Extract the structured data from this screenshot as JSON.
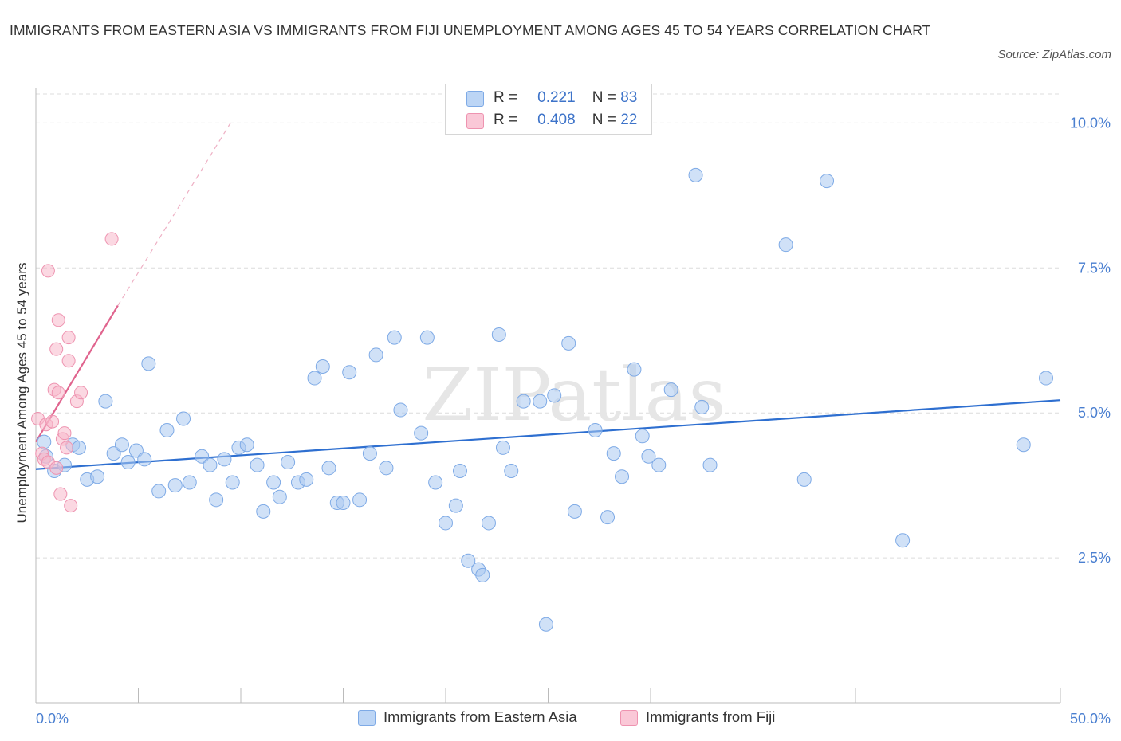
{
  "title": "IMMIGRANTS FROM EASTERN ASIA VS IMMIGRANTS FROM FIJI UNEMPLOYMENT AMONG AGES 45 TO 54 YEARS CORRELATION CHART",
  "source": "Source: ZipAtlas.com",
  "watermark": "ZIPatlas",
  "legend": {
    "rows": [
      {
        "r_label": "R =",
        "r_value": "0.221",
        "n_label": "N =",
        "n_value": "83",
        "color": "#a9c8f1"
      },
      {
        "r_label": "R =",
        "r_value": "0.408",
        "n_label": "N =",
        "n_value": "22",
        "color": "#f7b8cb"
      }
    ]
  },
  "chart_data": {
    "type": "scatter",
    "title": "IMMIGRANTS FROM EASTERN ASIA VS IMMIGRANTS FROM FIJI UNEMPLOYMENT AMONG AGES 45 TO 54 YEARS CORRELATION CHART",
    "xlabel": "",
    "ylabel": "Unemployment Among Ages 45 to 54 years",
    "xlim": [
      0,
      50
    ],
    "ylim": [
      0,
      10.5
    ],
    "x_tick_labels": [
      "0.0%",
      "50.0%"
    ],
    "y_ticks": [
      2.5,
      5.0,
      7.5,
      10.0
    ],
    "y_tick_labels": [
      "2.5%",
      "5.0%",
      "7.5%",
      "10.0%"
    ],
    "grid": true,
    "legend_position": "bottom",
    "series": [
      {
        "name": "Immigrants from Eastern Asia",
        "color": "#a9c8f1",
        "stroke": "#7eaae6",
        "trend_color": "#2e6fd0",
        "trend": {
          "x": [
            0,
            50
          ],
          "y": [
            4.03,
            5.22
          ]
        },
        "points": [
          [
            0.4,
            4.5
          ],
          [
            0.5,
            4.25
          ],
          [
            0.9,
            4.0
          ],
          [
            1.4,
            4.1
          ],
          [
            1.8,
            4.45
          ],
          [
            2.1,
            4.4
          ],
          [
            2.5,
            3.85
          ],
          [
            3.0,
            3.9
          ],
          [
            3.4,
            5.2
          ],
          [
            3.8,
            4.3
          ],
          [
            4.2,
            4.45
          ],
          [
            4.5,
            4.15
          ],
          [
            4.9,
            4.35
          ],
          [
            5.3,
            4.2
          ],
          [
            5.5,
            5.85
          ],
          [
            6.0,
            3.65
          ],
          [
            6.4,
            4.7
          ],
          [
            6.8,
            3.75
          ],
          [
            7.2,
            4.9
          ],
          [
            7.5,
            3.8
          ],
          [
            8.1,
            4.25
          ],
          [
            8.5,
            4.1
          ],
          [
            8.8,
            3.5
          ],
          [
            9.2,
            4.2
          ],
          [
            9.6,
            3.8
          ],
          [
            9.9,
            4.4
          ],
          [
            10.3,
            4.45
          ],
          [
            10.8,
            4.1
          ],
          [
            11.1,
            3.3
          ],
          [
            11.6,
            3.8
          ],
          [
            11.9,
            3.55
          ],
          [
            12.3,
            4.15
          ],
          [
            12.8,
            3.8
          ],
          [
            13.2,
            3.85
          ],
          [
            13.6,
            5.6
          ],
          [
            14.0,
            5.8
          ],
          [
            14.3,
            4.05
          ],
          [
            14.7,
            3.45
          ],
          [
            15.0,
            3.45
          ],
          [
            15.3,
            5.7
          ],
          [
            15.8,
            3.5
          ],
          [
            16.3,
            4.3
          ],
          [
            16.6,
            6.0
          ],
          [
            17.1,
            4.05
          ],
          [
            17.5,
            6.3
          ],
          [
            17.8,
            5.05
          ],
          [
            18.8,
            4.65
          ],
          [
            19.1,
            6.3
          ],
          [
            19.5,
            3.8
          ],
          [
            20.0,
            3.1
          ],
          [
            20.5,
            3.4
          ],
          [
            20.7,
            4.0
          ],
          [
            21.1,
            2.45
          ],
          [
            21.6,
            2.3
          ],
          [
            21.8,
            2.2
          ],
          [
            22.1,
            3.1
          ],
          [
            22.6,
            6.35
          ],
          [
            22.8,
            4.4
          ],
          [
            23.2,
            4.0
          ],
          [
            23.8,
            5.2
          ],
          [
            24.6,
            5.2
          ],
          [
            24.9,
            1.35
          ],
          [
            25.3,
            5.3
          ],
          [
            26.0,
            6.2
          ],
          [
            26.3,
            3.3
          ],
          [
            27.3,
            4.7
          ],
          [
            27.9,
            3.2
          ],
          [
            28.2,
            4.3
          ],
          [
            28.6,
            3.9
          ],
          [
            29.2,
            5.75
          ],
          [
            29.6,
            4.6
          ],
          [
            29.9,
            4.25
          ],
          [
            30.4,
            4.1
          ],
          [
            31.0,
            5.4
          ],
          [
            32.2,
            9.1
          ],
          [
            32.5,
            5.1
          ],
          [
            32.9,
            4.1
          ],
          [
            36.6,
            7.9
          ],
          [
            37.5,
            3.85
          ],
          [
            38.6,
            9.0
          ],
          [
            42.3,
            2.8
          ],
          [
            48.2,
            4.45
          ],
          [
            49.3,
            5.6
          ]
        ]
      },
      {
        "name": "Immigrants from Fiji",
        "color": "#f7b8cb",
        "stroke": "#ee93b0",
        "trend_color": "#e0648e",
        "trend": {
          "x": [
            0,
            4.0
          ],
          "y": [
            4.5,
            6.85
          ]
        },
        "trend_dashed": {
          "x": [
            4.0,
            9.5
          ],
          "y": [
            6.85,
            10.0
          ]
        },
        "points": [
          [
            0.1,
            4.9
          ],
          [
            0.3,
            4.3
          ],
          [
            0.4,
            4.2
          ],
          [
            0.5,
            4.8
          ],
          [
            0.6,
            4.15
          ],
          [
            0.6,
            7.45
          ],
          [
            0.8,
            4.85
          ],
          [
            0.9,
            5.4
          ],
          [
            1.0,
            6.1
          ],
          [
            1.0,
            4.05
          ],
          [
            1.1,
            6.6
          ],
          [
            1.1,
            5.35
          ],
          [
            1.2,
            3.6
          ],
          [
            1.3,
            4.55
          ],
          [
            1.4,
            4.65
          ],
          [
            1.5,
            4.4
          ],
          [
            1.6,
            5.9
          ],
          [
            1.6,
            6.3
          ],
          [
            1.7,
            3.4
          ],
          [
            2.0,
            5.2
          ],
          [
            2.2,
            5.35
          ],
          [
            3.7,
            8.0
          ]
        ]
      }
    ]
  }
}
